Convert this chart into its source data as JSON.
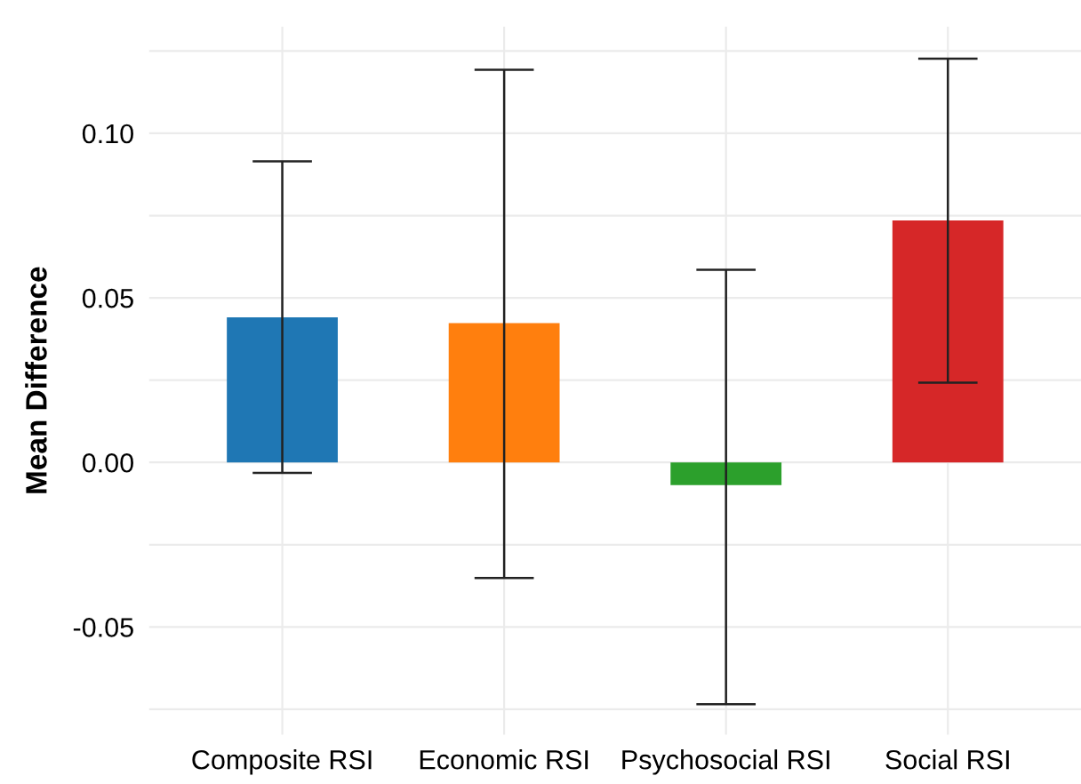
{
  "chart_data": {
    "type": "bar",
    "ylabel": "Mean Difference",
    "categories": [
      "Composite RSI",
      "Economic RSI",
      "Psychosocial RSI",
      "Social RSI"
    ],
    "values": [
      0.0441,
      0.0423,
      -0.0069,
      0.0735
    ],
    "colors": [
      "#1f77b4",
      "#ff7f0e",
      "#2ca02c",
      "#d62728"
    ],
    "errors": [
      [
        -0.0032,
        0.0915
      ],
      [
        -0.0351,
        0.1193
      ],
      [
        -0.0735,
        0.0585
      ],
      [
        0.0242,
        0.1227
      ]
    ],
    "ylim": [
      -0.0827,
      0.1324
    ],
    "yticks": [
      {
        "value": -0.075,
        "label": null
      },
      -0.05,
      {
        "value": -0.025,
        "label": null
      },
      {
        "value": 0,
        "label": "0.00"
      },
      {
        "value": 0.025,
        "label": null
      },
      0.05,
      {
        "value": 0.075,
        "label": null
      },
      {
        "value": 0.1,
        "label": "0.10"
      },
      {
        "value": 0.125,
        "label": null
      }
    ],
    "grid": true
  }
}
